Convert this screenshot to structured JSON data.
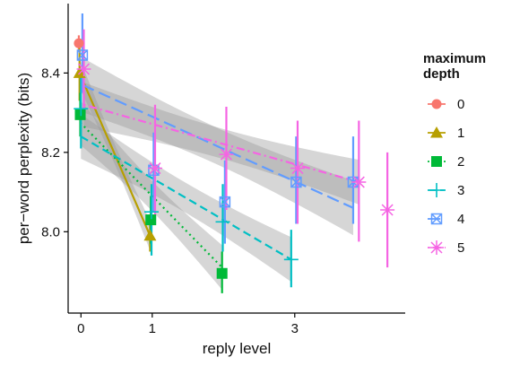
{
  "chart_data": {
    "type": "line",
    "xlabel": "reply level",
    "ylabel": "per−word perplexity (bits)",
    "x_ticks": [
      0,
      1,
      3
    ],
    "x_tick_labels": [
      "0",
      "1",
      "3"
    ],
    "y_ticks": [
      8.0,
      8.2,
      8.4
    ],
    "y_tick_labels": [
      "8.0",
      "8.2",
      "8.4"
    ],
    "xlim": [
      -0.18,
      4.55
    ],
    "ylim": [
      7.795,
      8.575
    ],
    "grid": false,
    "legend": {
      "title": "maximum\ndepth",
      "placement": "right",
      "entries": [
        "0",
        "1",
        "2",
        "3",
        "4",
        "5"
      ]
    },
    "series": [
      {
        "name": "0",
        "color": "#F8766D",
        "marker": "circle",
        "dash": "none",
        "points": [
          {
            "x": -0.03,
            "y": 8.475,
            "lo": 8.455,
            "hi": 8.495
          }
        ],
        "fit": null
      },
      {
        "name": "1",
        "color": "#B79F00",
        "marker": "triangle",
        "dash": "solid",
        "points": [
          {
            "x": -0.02,
            "y": 8.4,
            "lo": 8.33,
            "hi": 8.47
          },
          {
            "x": 0.97,
            "y": 7.99,
            "lo": 7.95,
            "hi": 8.03
          }
        ],
        "fit": {
          "x0": -0.02,
          "y0": 8.4,
          "x1": 0.97,
          "y1": 7.99,
          "band": 0.03
        }
      },
      {
        "name": "2",
        "color": "#00BA38",
        "marker": "square",
        "dash": "dotted",
        "points": [
          {
            "x": -0.01,
            "y": 8.295,
            "lo": 8.24,
            "hi": 8.35
          },
          {
            "x": 0.98,
            "y": 8.03,
            "lo": 7.97,
            "hi": 8.09
          },
          {
            "x": 1.98,
            "y": 7.895,
            "lo": 7.845,
            "hi": 7.95
          }
        ],
        "fit": {
          "x0": -0.01,
          "y0": 8.275,
          "x1": 1.98,
          "y1": 7.91,
          "band": 0.045
        }
      },
      {
        "name": "3",
        "color": "#00BFC4",
        "marker": "plus",
        "dash": "dashed",
        "points": [
          {
            "x": 0.0,
            "y": 8.31,
            "lo": 8.21,
            "hi": 8.41
          },
          {
            "x": 0.99,
            "y": 8.05,
            "lo": 7.94,
            "hi": 8.12
          },
          {
            "x": 1.99,
            "y": 8.025,
            "lo": 7.95,
            "hi": 8.12
          },
          {
            "x": 2.95,
            "y": 7.93,
            "lo": 7.86,
            "hi": 8.005
          }
        ],
        "fit": {
          "x0": 0.0,
          "y0": 8.24,
          "x1": 2.95,
          "y1": 7.93,
          "band": 0.045
        }
      },
      {
        "name": "4",
        "color": "#619CFF",
        "marker": "boxed-x",
        "dash": "longdash",
        "points": [
          {
            "x": 0.02,
            "y": 8.445,
            "lo": 8.35,
            "hi": 8.55
          },
          {
            "x": 1.02,
            "y": 8.155,
            "lo": 8.05,
            "hi": 8.25
          },
          {
            "x": 2.02,
            "y": 8.075,
            "lo": 7.97,
            "hi": 8.18
          },
          {
            "x": 3.02,
            "y": 8.125,
            "lo": 8.02,
            "hi": 8.24
          },
          {
            "x": 3.82,
            "y": 8.125,
            "lo": 8.02,
            "hi": 8.24
          }
        ],
        "fit": {
          "x0": 0.02,
          "y0": 8.37,
          "x1": 3.82,
          "y1": 8.06,
          "band": 0.055
        }
      },
      {
        "name": "5",
        "color": "#F564E3",
        "marker": "asterisk",
        "dash": "dotdash",
        "points": [
          {
            "x": 0.04,
            "y": 8.41,
            "lo": 8.31,
            "hi": 8.51
          },
          {
            "x": 1.04,
            "y": 8.16,
            "lo": 8.02,
            "hi": 8.32
          },
          {
            "x": 2.04,
            "y": 8.195,
            "lo": 8.055,
            "hi": 8.315
          },
          {
            "x": 3.04,
            "y": 8.16,
            "lo": 8.02,
            "hi": 8.28
          },
          {
            "x": 3.9,
            "y": 8.125,
            "lo": 7.975,
            "hi": 8.28
          },
          {
            "x": 4.3,
            "y": 8.055,
            "lo": 7.91,
            "hi": 8.2
          }
        ],
        "fit": {
          "x0": 0.04,
          "y0": 8.32,
          "x1": 3.9,
          "y1": 8.125,
          "band": 0.045
        }
      }
    ]
  }
}
